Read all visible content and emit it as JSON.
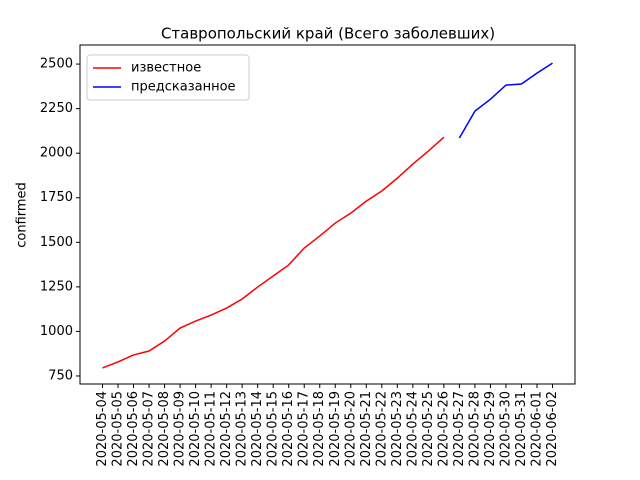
{
  "chart_data": {
    "type": "line",
    "title": "Ставропольский край (Всего заболевших)",
    "y_label": "confirmed",
    "categories": [
      "2020-05-04",
      "2020-05-05",
      "2020-05-06",
      "2020-05-07",
      "2020-05-08",
      "2020-05-09",
      "2020-05-10",
      "2020-05-11",
      "2020-05-12",
      "2020-05-13",
      "2020-05-14",
      "2020-05-15",
      "2020-05-16",
      "2020-05-17",
      "2020-05-18",
      "2020-05-19",
      "2020-05-20",
      "2020-05-21",
      "2020-05-22",
      "2020-05-23",
      "2020-05-24",
      "2020-05-25",
      "2020-05-26",
      "2020-05-27",
      "2020-05-28",
      "2020-05-29",
      "2020-05-30",
      "2020-05-31",
      "2020-06-01",
      "2020-06-02"
    ],
    "series": [
      {
        "name": "известное",
        "color": "#ff0000",
        "values": [
          795,
          829,
          868,
          890,
          946,
          1019,
          1058,
          1092,
          1131,
          1182,
          1249,
          1311,
          1373,
          1468,
          1535,
          1608,
          1664,
          1731,
          1788,
          1860,
          1939,
          2012,
          2090,
          null,
          null,
          null,
          null,
          null,
          null,
          null
        ]
      },
      {
        "name": "предсказанное",
        "color": "#0000ff",
        "values": [
          null,
          null,
          null,
          null,
          null,
          null,
          null,
          null,
          null,
          null,
          null,
          null,
          null,
          null,
          null,
          null,
          null,
          null,
          null,
          null,
          null,
          null,
          null,
          2085,
          2236,
          2303,
          2382,
          2388,
          2449,
          2505
        ]
      }
    ],
    "ylim": [
      705,
      2607
    ],
    "yticks": [
      750,
      1000,
      1250,
      1500,
      1750,
      2000,
      2250,
      2500
    ],
    "legend": "upper left",
    "grid": false
  }
}
